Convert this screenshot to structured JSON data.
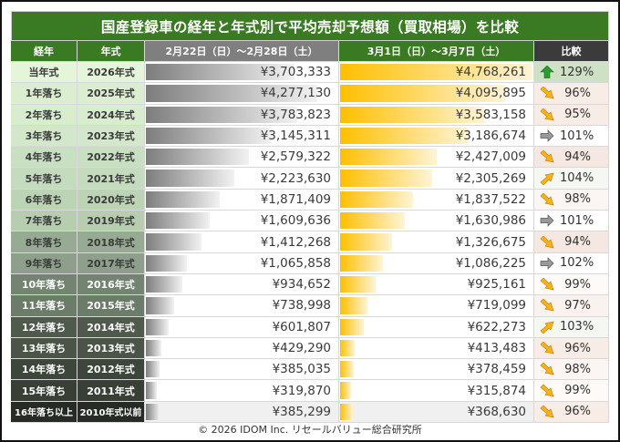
{
  "title": "国産登録車の経年と年式別で平均売却予想額（買取相場）を比較",
  "headers": {
    "age": "経年",
    "year": "年式",
    "period1": "2月22日（日）～2月28日（土）",
    "period2": "3月1日（日）～3月7日（土）",
    "compare": "比較"
  },
  "colors": {
    "title_bg": "#3a7a23",
    "period1_header": "#7f7f7f",
    "compare_header": "#3b3b3b",
    "bar1": "#7d7d7d",
    "bar2": "#ffbf00",
    "up": "#2e9a2e",
    "down": "#f5a800",
    "flat": "#7f7f7f"
  },
  "rows": [
    {
      "age": "当年式",
      "year": "2026年式",
      "p1": "¥3,703,333",
      "p1_value": 3703333,
      "p2": "¥4,768,261",
      "p2_value": 4768261,
      "cmp": "129%",
      "trend": "up-icon",
      "age_bg": "#e4f5d9",
      "age_fg": "#3a3a3a",
      "cmp_bg": "#cfe1c4"
    },
    {
      "age": "1年落ち",
      "year": "2025年式",
      "p1": "¥4,277,130",
      "p1_value": 4277130,
      "p2": "¥4,095,895",
      "p2_value": 4095895,
      "cmp": "96%",
      "trend": "down-icon",
      "age_bg": "#dbeed0",
      "age_fg": "#3a3a3a",
      "cmp_bg": "#f7ece6"
    },
    {
      "age": "2年落ち",
      "year": "2024年式",
      "p1": "¥3,783,823",
      "p1_value": 3783823,
      "p2": "¥3,583,158",
      "p2_value": 3583158,
      "cmp": "95%",
      "trend": "down-icon",
      "age_bg": "#d8ecce",
      "age_fg": "#3a3a3a",
      "cmp_bg": "#f7ece6"
    },
    {
      "age": "3年落ち",
      "year": "2023年式",
      "p1": "¥3,145,311",
      "p1_value": 3145311,
      "p2": "¥3,186,674",
      "p2_value": 3186674,
      "cmp": "101%",
      "trend": "flat-icon",
      "age_bg": "#d3e7ca",
      "age_fg": "#3a3a3a",
      "cmp_bg": "#ffffff"
    },
    {
      "age": "4年落ち",
      "year": "2022年式",
      "p1": "¥2,579,322",
      "p1_value": 2579322,
      "p2": "¥2,427,009",
      "p2_value": 2427009,
      "cmp": "94%",
      "trend": "down-icon",
      "age_bg": "#c9dfc2",
      "age_fg": "#3a3a3a",
      "cmp_bg": "#f5e8e2"
    },
    {
      "age": "5年落ち",
      "year": "2021年式",
      "p1": "¥2,223,630",
      "p1_value": 2223630,
      "p2": "¥2,305,269",
      "p2_value": 2305269,
      "cmp": "104%",
      "trend": "up-right-icon",
      "age_bg": "#c4dbbd",
      "age_fg": "#3a3a3a",
      "cmp_bg": "#f5f7f3"
    },
    {
      "age": "6年落ち",
      "year": "2020年式",
      "p1": "¥1,871,409",
      "p1_value": 1871409,
      "p2": "¥1,837,522",
      "p2_value": 1837522,
      "cmp": "98%",
      "trend": "down-icon",
      "age_bg": "#bcd3b5",
      "age_fg": "#3a3a3a",
      "cmp_bg": "#fbf6f3"
    },
    {
      "age": "7年落ち",
      "year": "2019年式",
      "p1": "¥1,609,636",
      "p1_value": 1609636,
      "p2": "¥1,630,986",
      "p2_value": 1630986,
      "cmp": "101%",
      "trend": "flat-icon",
      "age_bg": "#b6cdb0",
      "age_fg": "#3a3a3a",
      "cmp_bg": "#ffffff"
    },
    {
      "age": "8年落ち",
      "year": "2018年式",
      "p1": "¥1,412,268",
      "p1_value": 1412268,
      "p2": "¥1,326,675",
      "p2_value": 1326675,
      "cmp": "94%",
      "trend": "down-icon",
      "age_bg": "#97ab94",
      "age_fg": "#3a3a3a",
      "cmp_bg": "#f5e8e2"
    },
    {
      "age": "9年落ち",
      "year": "2017年式",
      "p1": "¥1,065,858",
      "p1_value": 1065858,
      "p2": "¥1,086,225",
      "p2_value": 1086225,
      "cmp": "102%",
      "trend": "flat-icon",
      "age_bg": "#8ea08b",
      "age_fg": "#3a3a3a",
      "cmp_bg": "#ffffff"
    },
    {
      "age": "10年落ち",
      "year": "2016年式",
      "p1": "¥934,652",
      "p1_value": 934652,
      "p2": "¥925,161",
      "p2_value": 925161,
      "cmp": "99%",
      "trend": "down-icon",
      "age_bg": "#738571",
      "age_fg": "#ffffff",
      "cmp_bg": "#fdfaf8"
    },
    {
      "age": "11年落ち",
      "year": "2015年式",
      "p1": "¥738,998",
      "p1_value": 738998,
      "p2": "¥719,099",
      "p2_value": 719099,
      "cmp": "97%",
      "trend": "down-icon",
      "age_bg": "#6b7c69",
      "age_fg": "#ffffff",
      "cmp_bg": "#f9f2ee"
    },
    {
      "age": "12年落ち",
      "year": "2014年式",
      "p1": "¥601,807",
      "p1_value": 601807,
      "p2": "¥622,273",
      "p2_value": 622273,
      "cmp": "103%",
      "trend": "up-right-icon",
      "age_bg": "#4f5a4c",
      "age_fg": "#ffffff",
      "cmp_bg": "#f5f7f3"
    },
    {
      "age": "13年落ち",
      "year": "2013年式",
      "p1": "¥429,290",
      "p1_value": 429290,
      "p2": "¥413,483",
      "p2_value": 413483,
      "cmp": "96%",
      "trend": "down-icon",
      "age_bg": "#4a5447",
      "age_fg": "#ffffff",
      "cmp_bg": "#f7ece6"
    },
    {
      "age": "14年落ち",
      "year": "2012年式",
      "p1": "¥385,035",
      "p1_value": 385035,
      "p2": "¥378,459",
      "p2_value": 378459,
      "cmp": "98%",
      "trend": "down-icon",
      "age_bg": "#3d463b",
      "age_fg": "#ffffff",
      "cmp_bg": "#fbf6f3"
    },
    {
      "age": "15年落ち",
      "year": "2011年式",
      "p1": "¥319,870",
      "p1_value": 319870,
      "p2": "¥315,874",
      "p2_value": 315874,
      "cmp": "99%",
      "trend": "down-icon",
      "age_bg": "#384036",
      "age_fg": "#ffffff",
      "cmp_bg": "#fdfaf8"
    },
    {
      "age": "16年落ち以上",
      "year": "2010年式以前",
      "p1": "¥385,299",
      "p1_value": 385299,
      "p2": "¥368,630",
      "p2_value": 368630,
      "cmp": "96%",
      "trend": "down-icon",
      "age_bg": "#262c25",
      "age_fg": "#ffffff",
      "cmp_bg": "#f7ece6"
    }
  ],
  "bar_max": 4768261,
  "footer": "© 2026 IDOM Inc. リセールバリュー総合研究所"
}
